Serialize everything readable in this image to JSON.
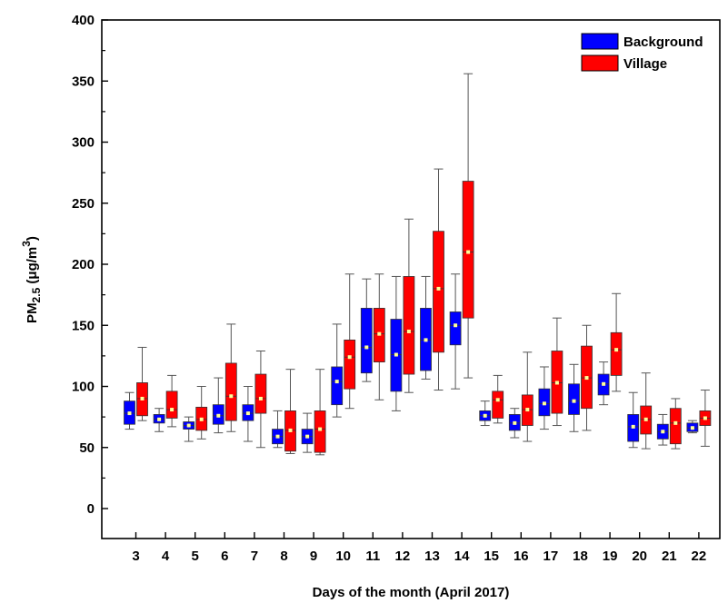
{
  "chart_data": {
    "type": "box",
    "xlabel": "Days of the month (April 2017)",
    "ylabel": {
      "base": "PM",
      "sub": "2.5",
      "units": " (μg/m",
      "sup": "3",
      "close": ")"
    },
    "ylim": [
      0,
      400
    ],
    "yticks": [
      0,
      50,
      100,
      150,
      200,
      250,
      300,
      350,
      400
    ],
    "categories": [
      "3",
      "4",
      "5",
      "6",
      "7",
      "8",
      "9",
      "10",
      "11",
      "12",
      "13",
      "14",
      "15",
      "16",
      "17",
      "18",
      "19",
      "20",
      "21",
      "22"
    ],
    "legend_position": "top-right",
    "series": [
      {
        "name": "Background",
        "color": "#0000ff",
        "mean_marker_color": "#ffff99",
        "boxes": [
          {
            "min": 65,
            "q1": 69,
            "median": 78,
            "q3": 88,
            "max": 95,
            "mean": 78
          },
          {
            "min": 63,
            "q1": 70,
            "median": 73,
            "q3": 77,
            "max": 82,
            "mean": 73
          },
          {
            "min": 55,
            "q1": 65,
            "median": 68,
            "q3": 71,
            "max": 75,
            "mean": 68
          },
          {
            "min": 62,
            "q1": 69,
            "median": 76,
            "q3": 85,
            "max": 107,
            "mean": 76
          },
          {
            "min": 55,
            "q1": 72,
            "median": 78,
            "q3": 85,
            "max": 100,
            "mean": 78
          },
          {
            "min": 50,
            "q1": 53,
            "median": 59,
            "q3": 65,
            "max": 80,
            "mean": 59
          },
          {
            "min": 46,
            "q1": 53,
            "median": 59,
            "q3": 65,
            "max": 78,
            "mean": 59
          },
          {
            "min": 75,
            "q1": 85,
            "median": 104,
            "q3": 116,
            "max": 151,
            "mean": 104
          },
          {
            "min": 104,
            "q1": 111,
            "median": 132,
            "q3": 164,
            "max": 188,
            "mean": 132
          },
          {
            "min": 80,
            "q1": 96,
            "median": 126,
            "q3": 155,
            "max": 190,
            "mean": 126
          },
          {
            "min": 106,
            "q1": 113,
            "median": 138,
            "q3": 164,
            "max": 190,
            "mean": 138
          },
          {
            "min": 98,
            "q1": 134,
            "median": 150,
            "q3": 161,
            "max": 192,
            "mean": 150
          },
          {
            "min": 68,
            "q1": 72,
            "median": 76,
            "q3": 80,
            "max": 88,
            "mean": 76
          },
          {
            "min": 58,
            "q1": 64,
            "median": 70,
            "q3": 77,
            "max": 82,
            "mean": 70
          },
          {
            "min": 65,
            "q1": 76,
            "median": 86,
            "q3": 98,
            "max": 116,
            "mean": 86
          },
          {
            "min": 63,
            "q1": 77,
            "median": 88,
            "q3": 102,
            "max": 118,
            "mean": 88
          },
          {
            "min": 85,
            "q1": 93,
            "median": 102,
            "q3": 110,
            "max": 120,
            "mean": 102
          },
          {
            "min": 50,
            "q1": 55,
            "median": 67,
            "q3": 77,
            "max": 95,
            "mean": 67
          },
          {
            "min": 52,
            "q1": 57,
            "median": 63,
            "q3": 69,
            "max": 77,
            "mean": 63
          },
          {
            "min": 62,
            "q1": 63,
            "median": 66,
            "q3": 70,
            "max": 72,
            "mean": 66
          }
        ]
      },
      {
        "name": "Village",
        "color": "#ff0000",
        "mean_marker_color": "#ffff99",
        "boxes": [
          {
            "min": 72,
            "q1": 76,
            "median": 90,
            "q3": 103,
            "max": 132,
            "mean": 90
          },
          {
            "min": 67,
            "q1": 74,
            "median": 81,
            "q3": 96,
            "max": 109,
            "mean": 81
          },
          {
            "min": 57,
            "q1": 64,
            "median": 73,
            "q3": 83,
            "max": 100,
            "mean": 73
          },
          {
            "min": 63,
            "q1": 72,
            "median": 92,
            "q3": 119,
            "max": 151,
            "mean": 92
          },
          {
            "min": 50,
            "q1": 78,
            "median": 90,
            "q3": 110,
            "max": 129,
            "mean": 90
          },
          {
            "min": 45,
            "q1": 47,
            "median": 64,
            "q3": 80,
            "max": 114,
            "mean": 64
          },
          {
            "min": 44,
            "q1": 46,
            "median": 65,
            "q3": 80,
            "max": 114,
            "mean": 65
          },
          {
            "min": 82,
            "q1": 98,
            "median": 124,
            "q3": 138,
            "max": 192,
            "mean": 124
          },
          {
            "min": 89,
            "q1": 120,
            "median": 143,
            "q3": 164,
            "max": 192,
            "mean": 143
          },
          {
            "min": 95,
            "q1": 110,
            "median": 145,
            "q3": 190,
            "max": 237,
            "mean": 145
          },
          {
            "min": 97,
            "q1": 128,
            "median": 180,
            "q3": 227,
            "max": 278,
            "mean": 180
          },
          {
            "min": 107,
            "q1": 156,
            "median": 210,
            "q3": 268,
            "max": 356,
            "mean": 210
          },
          {
            "min": 70,
            "q1": 74,
            "median": 89,
            "q3": 96,
            "max": 109,
            "mean": 89
          },
          {
            "min": 55,
            "q1": 68,
            "median": 81,
            "q3": 93,
            "max": 128,
            "mean": 81
          },
          {
            "min": 68,
            "q1": 78,
            "median": 103,
            "q3": 129,
            "max": 156,
            "mean": 103
          },
          {
            "min": 64,
            "q1": 82,
            "median": 107,
            "q3": 133,
            "max": 150,
            "mean": 107
          },
          {
            "min": 96,
            "q1": 109,
            "median": 130,
            "q3": 144,
            "max": 176,
            "mean": 130
          },
          {
            "min": 49,
            "q1": 61,
            "median": 73,
            "q3": 84,
            "max": 111,
            "mean": 73
          },
          {
            "min": 49,
            "q1": 53,
            "median": 70,
            "q3": 82,
            "max": 90,
            "mean": 70
          },
          {
            "min": 51,
            "q1": 68,
            "median": 74,
            "q3": 80,
            "max": 97,
            "mean": 74
          }
        ]
      }
    ]
  }
}
